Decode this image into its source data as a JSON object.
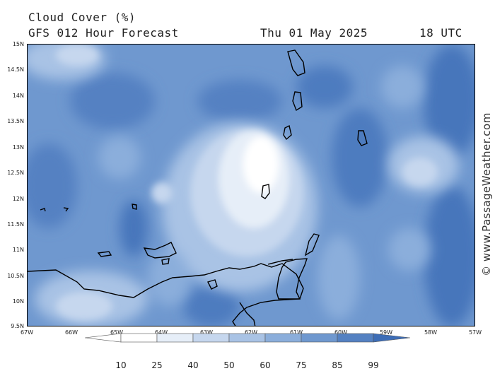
{
  "header": {
    "title": "Cloud Cover (%)",
    "subtitle": "GFS 012 Hour Forecast",
    "date": "Thu 01 May 2025",
    "time": "18 UTC"
  },
  "map": {
    "lat_labels": [
      "15N",
      "14.5N",
      "14N",
      "13.5N",
      "13N",
      "12.5N",
      "12N",
      "11.5N",
      "11N",
      "10.5N",
      "10N",
      "9.5N"
    ],
    "lon_labels": [
      "67W",
      "66W",
      "65W",
      "64W",
      "63W",
      "62W",
      "61W",
      "60W",
      "59W",
      "58W",
      "57W"
    ],
    "lat_range": [
      9.5,
      15
    ],
    "lon_range": [
      -67,
      -57
    ]
  },
  "legend": {
    "values": [
      "10",
      "25",
      "40",
      "50",
      "60",
      "75",
      "85",
      "99"
    ],
    "colors": [
      "#ffffff",
      "#e6eef8",
      "#c6d7ee",
      "#a9c3e5",
      "#8baedb",
      "#6f98cf",
      "#5481c2",
      "#3d6db6"
    ]
  },
  "copyright": "© www.PassageWeather.com"
}
